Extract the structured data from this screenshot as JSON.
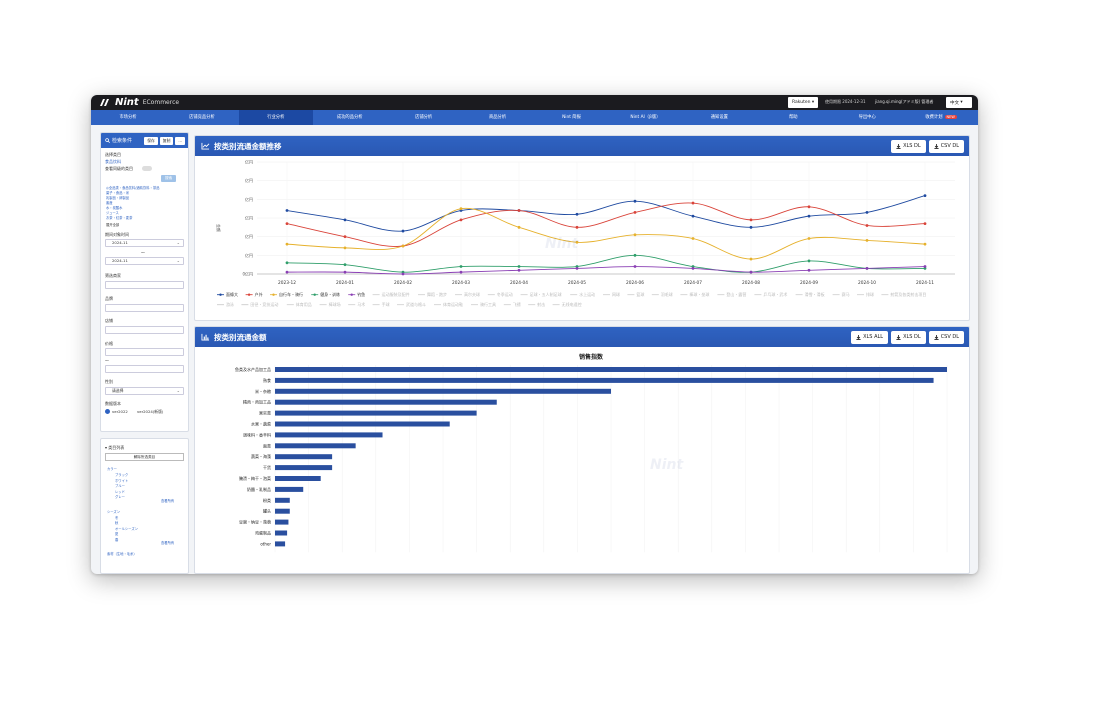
{
  "app": {
    "name": "Nint",
    "sub": "ECommerce"
  },
  "topbar": {
    "platform": "Rakuten",
    "period": "使用期限 2024-12-31",
    "user": "jiang.qi.ming(アドミ版) 管理者",
    "lang": "中文"
  },
  "nav": [
    {
      "label": "市场分析"
    },
    {
      "label": "店铺竞品分析"
    },
    {
      "label": "行业分析",
      "active": true
    },
    {
      "label": "成功的品分析"
    },
    {
      "label": "店铺分析"
    },
    {
      "label": "商品分析"
    },
    {
      "label": "Nint 简报"
    },
    {
      "label": "Nint AI（β版）"
    },
    {
      "label": "通知设置"
    },
    {
      "label": "帮助"
    },
    {
      "label": "导出中心"
    },
    {
      "label": "收费计划",
      "badge": "NEW"
    }
  ],
  "search": {
    "title": "检索条件",
    "reset": "保存",
    "apply": "复制",
    "more": "...",
    "category_label": "选择类目",
    "category_value": "食品饮料",
    "exclude_label": "查看同级的类目",
    "select_btn": "搜索",
    "tree": [
      "◎全品类・食品饮料/酒精饮料・茶品",
      "菓子・食品・米",
      "乳製品・卵製品",
      "畜産",
      "水・炭酸水",
      "ジュース",
      "お茶・紅茶・麦茶"
    ],
    "tree_more": "展开全部",
    "period_label": "期间对象时间",
    "from": "2024-11",
    "to": "2024-11",
    "tilde": "〜",
    "shop_label": "筛选商家",
    "brand_label": "品牌",
    "store_label": "店铺",
    "price_label": "价格",
    "gender_label": "性别",
    "gender_value": "请选择",
    "version_label": "数据版本",
    "ver1": "ver2022",
    "ver2": "ver2024(新版)"
  },
  "category_list": {
    "title": "类目列表",
    "all_btn": "解除所选类目",
    "groups": [
      {
        "name": "カラー",
        "items": [
          "ブラック",
          "ホワイト",
          "ブルー",
          "レッド",
          "グレー"
        ],
        "more": "查看所有"
      },
      {
        "name": "シーズン",
        "items": [
          "冬",
          "秋",
          "オールシーズン",
          "夏",
          "春"
        ],
        "more": "查看所有"
      },
      {
        "name": "素材（生地・毛糸）",
        "items": [],
        "more": ""
      }
    ]
  },
  "trend": {
    "title": "按类别流通金额推移",
    "xls": "XLS DL",
    "csv": "CSV DL",
    "y_unit": "金额",
    "y_ticks": [
      "亿円",
      "亿円",
      "亿円",
      "亿円",
      "亿円",
      "亿円",
      "0亿円"
    ],
    "legend_active": [
      {
        "name": "面條大",
        "color": "#1f4aa0"
      },
      {
        "name": "户外",
        "color": "#d9443a"
      },
      {
        "name": "自行车・骑行",
        "color": "#e6b12c"
      },
      {
        "name": "健身・训练",
        "color": "#2f9e6a"
      },
      {
        "name": "钓鱼",
        "color": "#8a3fb4"
      }
    ],
    "legend_inactive": [
      "运动服装及配件",
      "舞蹈・跑步",
      "高尔夫球",
      "冬季运动",
      "足球・五人制足球",
      "水上运动",
      "网球",
      "篮球",
      "羽毛球",
      "棒球・垒球",
      "登山・露营",
      "乒乓球・武术",
      "滑雪・滑板",
      "赛马",
      "排球",
      "射箭及各类射击项目",
      "游泳",
      "田径・竞技运动",
      "体育用品",
      "棒球场",
      "马术",
      "手球",
      "武道与格斗",
      "体育运动鞋",
      "骑行工具",
      "飞镖",
      "射击",
      "无线电遥控"
    ]
  },
  "chart_data": [
    {
      "type": "line",
      "title": "按类别流通金额推移",
      "x": [
        "2023-12",
        "2024-01",
        "2024-02",
        "2024-03",
        "2024-04",
        "2024-05",
        "2024-06",
        "2024-07",
        "2024-08",
        "2024-09",
        "2024-10",
        "2024-11"
      ],
      "ylim": [
        0,
        6
      ],
      "series": [
        {
          "name": "面條大",
          "color": "#1f4aa0",
          "values": [
            3.4,
            2.9,
            2.3,
            3.4,
            3.4,
            3.2,
            3.9,
            3.1,
            2.5,
            3.1,
            3.3,
            4.2
          ]
        },
        {
          "name": "户外",
          "color": "#d9443a",
          "values": [
            2.7,
            2.0,
            1.5,
            2.9,
            3.4,
            2.5,
            3.3,
            3.8,
            2.9,
            3.6,
            2.6,
            2.7
          ]
        },
        {
          "name": "自行车・骑行",
          "color": "#e6b12c",
          "values": [
            1.6,
            1.4,
            1.5,
            3.5,
            2.5,
            1.7,
            2.1,
            1.9,
            0.8,
            1.9,
            1.8,
            1.6
          ]
        },
        {
          "name": "健身・训练",
          "color": "#2f9e6a",
          "values": [
            0.6,
            0.5,
            0.1,
            0.4,
            0.4,
            0.4,
            1.0,
            0.4,
            0.1,
            0.7,
            0.3,
            0.3
          ]
        },
        {
          "name": "钓鱼",
          "color": "#8a3fb4",
          "values": [
            0.1,
            0.1,
            0.0,
            0.1,
            0.2,
            0.3,
            0.4,
            0.3,
            0.1,
            0.2,
            0.3,
            0.4
          ]
        }
      ]
    },
    {
      "type": "bar",
      "title": "销售指数",
      "orientation": "horizontal",
      "categories": [
        "鱼类及水产品加工品",
        "熟食",
        "米・杂粮",
        "精肉・肉加工品",
        "果实类",
        "水果・蔬菜",
        "调味料・香辛料",
        "面类",
        "蔬菜・海藻",
        "干货",
        "腌渍・梅干・泡菜",
        "奶酪・乳制品",
        "粉类",
        "罐头",
        "豆腐・纳豆・蒟蒻",
        "鸡蛋制品",
        "other"
      ],
      "values": [
        100,
        98,
        50,
        33,
        30,
        26,
        16,
        12,
        8.5,
        8.5,
        6.8,
        4.2,
        2.2,
        2.2,
        2.0,
        1.8,
        1.5
      ],
      "xlim": [
        0,
        100
      ]
    }
  ],
  "bars": {
    "title": "按类别流通金额",
    "chart_title": "销售指数",
    "xls_all": "XLS ALL",
    "xls": "XLS DL",
    "csv": "CSV DL"
  },
  "watermark": "Nint"
}
